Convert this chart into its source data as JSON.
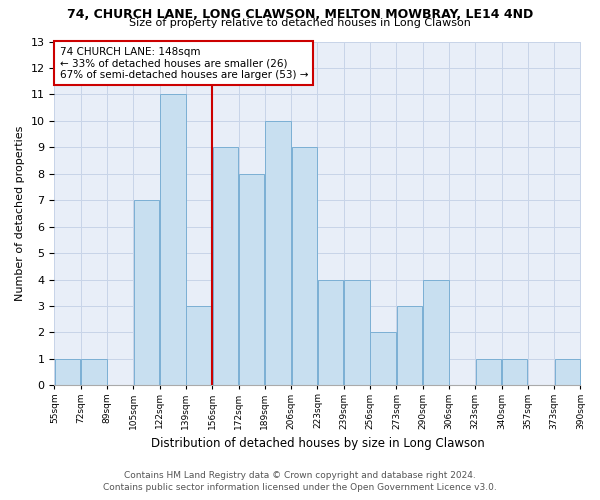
{
  "title": "74, CHURCH LANE, LONG CLAWSON, MELTON MOWBRAY, LE14 4ND",
  "subtitle": "Size of property relative to detached houses in Long Clawson",
  "xlabel": "Distribution of detached houses by size in Long Clawson",
  "ylabel": "Number of detached properties",
  "footer_line1": "Contains HM Land Registry data © Crown copyright and database right 2024.",
  "footer_line2": "Contains public sector information licensed under the Open Government Licence v3.0.",
  "annotation_line1": "74 CHURCH LANE: 148sqm",
  "annotation_line2": "← 33% of detached houses are smaller (26)",
  "annotation_line3": "67% of semi-detached houses are larger (53) →",
  "categories": [
    "55sqm",
    "72sqm",
    "89sqm",
    "105sqm",
    "122sqm",
    "139sqm",
    "156sqm",
    "172sqm",
    "189sqm",
    "206sqm",
    "223sqm",
    "239sqm",
    "256sqm",
    "273sqm",
    "290sqm",
    "306sqm",
    "323sqm",
    "340sqm",
    "357sqm",
    "373sqm",
    "390sqm"
  ],
  "bar_heights": [
    1,
    1,
    0,
    7,
    11,
    3,
    9,
    8,
    10,
    9,
    4,
    4,
    2,
    3,
    4,
    0,
    1,
    1,
    0,
    1
  ],
  "vline_index": 6,
  "bar_color": "#c8dff0",
  "bar_edgecolor": "#7bafd4",
  "vline_color": "#cc0000",
  "grid_color": "#c8d4e8",
  "background_color": "#e8eef8",
  "annotation_box_edgecolor": "#cc0000",
  "annotation_box_facecolor": "white",
  "ylim_max": 13,
  "title_fontsize": 9,
  "subtitle_fontsize": 8,
  "ylabel_fontsize": 8,
  "xlabel_fontsize": 8.5,
  "footer_fontsize": 6.5,
  "annotation_fontsize": 7.5
}
